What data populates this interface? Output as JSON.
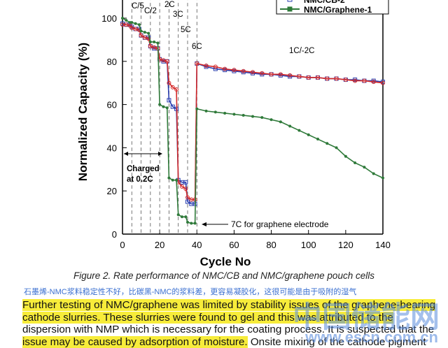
{
  "chart_data": {
    "type": "line",
    "x_label": "Cycle No",
    "y_label": "Normalized Capacity (%)",
    "x": [
      0,
      2,
      4,
      5,
      7,
      9,
      10,
      12,
      14,
      15,
      17,
      19,
      20,
      22,
      24,
      25,
      27,
      29,
      30,
      32,
      34,
      35,
      37,
      39,
      40,
      45,
      50,
      55,
      60,
      65,
      70,
      75,
      80,
      85,
      90,
      95,
      100,
      105,
      110,
      115,
      120,
      125,
      130,
      135,
      140
    ],
    "series": [
      {
        "name": "NMC/CB-2",
        "color": "#2a3fb0",
        "marker": "square",
        "values": [
          97.5,
          97,
          97,
          96,
          95,
          95,
          92,
          91,
          91,
          87,
          86,
          86,
          81,
          80,
          80,
          62,
          59,
          58,
          25,
          24,
          24,
          15,
          14,
          14,
          79,
          77.5,
          76.5,
          76,
          75.5,
          75,
          74.5,
          74,
          74,
          73.5,
          73,
          73,
          72.5,
          72.5,
          72,
          72,
          71.5,
          71.5,
          71,
          71,
          70.5
        ]
      },
      {
        "color": "#d42a2a",
        "marker": "circle",
        "values": [
          97,
          97,
          96.5,
          95.5,
          95,
          94.5,
          92,
          91,
          90.5,
          87,
          86.5,
          86,
          81,
          80.5,
          80,
          70,
          68,
          67,
          24,
          22,
          21,
          17,
          16,
          16,
          79,
          78,
          77.5,
          76.5,
          76,
          75.5,
          75,
          74.5,
          74,
          74,
          73.5,
          73,
          72.5,
          72.5,
          72,
          72,
          71.5,
          71,
          71,
          70.5,
          70
        ]
      },
      {
        "name": "NMC/Graphene-1",
        "color": "#2f7a3a",
        "marker": "dot",
        "values": [
          100,
          99,
          98,
          98,
          97.5,
          97,
          94,
          93.5,
          93,
          89,
          89,
          88.5,
          60,
          59,
          58.5,
          26,
          25,
          25,
          9,
          8,
          8,
          5.5,
          5,
          5,
          58,
          57,
          56.5,
          56,
          55.5,
          55,
          54.5,
          54,
          53,
          52,
          50,
          48,
          46,
          44,
          42,
          40,
          36,
          33,
          31,
          28,
          26
        ]
      }
    ],
    "xlim": [
      0,
      140
    ],
    "xticks": [
      0,
      20,
      40,
      60,
      80,
      100,
      120,
      140
    ],
    "ylim": [
      0,
      110
    ],
    "yticks": [
      0,
      20,
      40,
      60,
      80,
      100
    ],
    "annotations": [
      "C/5",
      "C/2",
      "2C",
      "3C",
      "5C",
      "6C",
      "1C/-2C",
      "Charged",
      "at 0.2C",
      "7C for graphene electrode"
    ]
  },
  "caption": "Figure 2. Rate performance of NMC/CB and NMC/graphene pouch cells",
  "chinese_note": "石墨烯-NMC浆料稳定性不好，比碳黑-NMC的浆料差，更容易凝胶化，这很可能是由于吸附的湿气",
  "paragraph": [
    [
      {
        "text": "Further testing of NMC/graphene was limited by stability issues of the graphene-bearing",
        "highlight": true
      }
    ],
    [
      {
        "text": "cathode slurries. These slurries were found to gel and this was attributed to the",
        "highlight": true
      }
    ],
    [
      {
        "text": "dispersion with NMP which is necessary for the coating process. It is suspected that the",
        "highlight": false
      }
    ],
    [
      {
        "text": "issue may be caused by adsorption of moisture.",
        "highlight": true
      },
      {
        "text": " Onsite mixing of the cathode pigment",
        "highlight": false
      }
    ]
  ],
  "watermark": [
    "中国储能网",
    "www.escn.com.cn"
  ]
}
